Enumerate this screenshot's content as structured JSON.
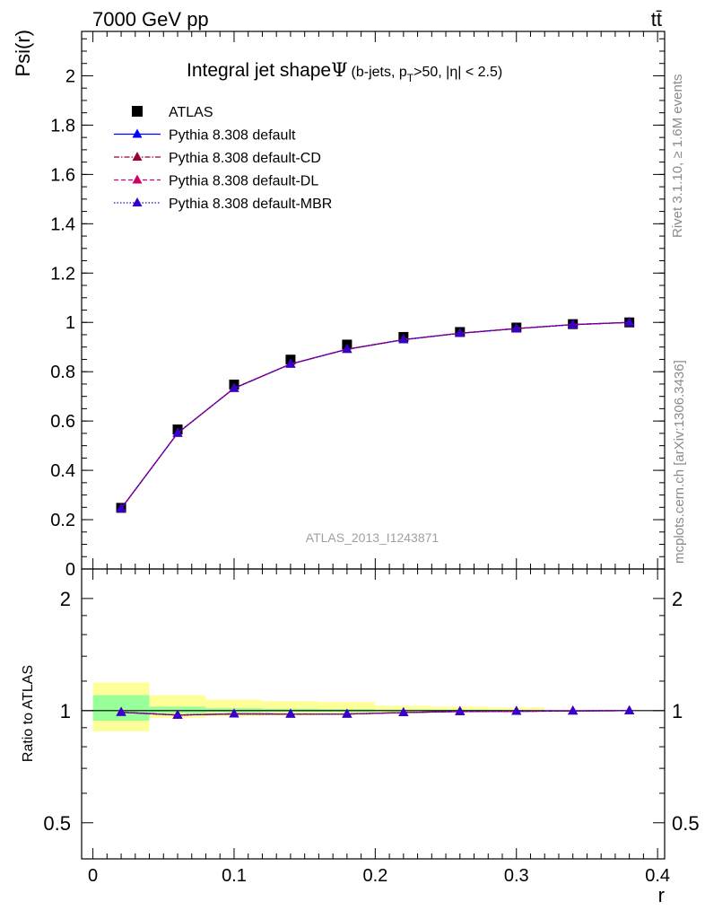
{
  "header": {
    "left": "7000 GeV pp",
    "right": "tt̄"
  },
  "side_text": {
    "rivet": "Rivet 3.1.10, ≥ 1.6M events",
    "mcplots": "mcplots.cern.ch [arXiv:1306.3436]"
  },
  "colors": {
    "atlas": "#000000",
    "default": "#0000ff",
    "cd": "#990033",
    "dl": "#cc0066",
    "mbr": "#3300cc",
    "band_inner": "#99ff99",
    "band_outer": "#ffff99"
  },
  "chart_data": [
    {
      "type": "line",
      "title": "Integral jet shape",
      "title_symbol": "Ψ",
      "subtitle_parts": [
        "(b-jets, p",
        "T",
        ">50, |η| < 2.5)"
      ],
      "ylabel": "Psi(r)",
      "xlabel": "",
      "watermark": "ATLAS_2013_I1243871",
      "xlim": [
        -0.008,
        0.405
      ],
      "ylim": [
        0,
        2.18
      ],
      "yticks": [
        0,
        0.2,
        0.4,
        0.6,
        0.8,
        1,
        1.2,
        1.4,
        1.6,
        1.8,
        2
      ],
      "ytick_labels": [
        "0",
        "0.2",
        "0.4",
        "0.6",
        "0.8",
        "1",
        "1.2",
        "1.4",
        "1.6",
        "1.8",
        "2"
      ],
      "legend_position": "top-left",
      "x": [
        0.02,
        0.06,
        0.1,
        0.14,
        0.18,
        0.22,
        0.26,
        0.3,
        0.34,
        0.38
      ],
      "series": [
        {
          "name": "ATLAS",
          "style": "marker",
          "color_key": "atlas",
          "values": [
            0.248,
            0.566,
            0.748,
            0.849,
            0.91,
            0.941,
            0.961,
            0.979,
            0.993,
            1.0
          ]
        },
        {
          "name": "Pythia 8.308 default",
          "style": "solid",
          "color_key": "default",
          "values": [
            0.245,
            0.551,
            0.733,
            0.831,
            0.891,
            0.93,
            0.956,
            0.975,
            0.991,
            1.0
          ]
        },
        {
          "name": "Pythia 8.308 default-CD",
          "style": "dashdot",
          "color_key": "cd",
          "values": [
            0.245,
            0.551,
            0.733,
            0.831,
            0.891,
            0.93,
            0.956,
            0.975,
            0.991,
            1.0
          ]
        },
        {
          "name": "Pythia 8.308 default-DL",
          "style": "dashed",
          "color_key": "dl",
          "values": [
            0.245,
            0.551,
            0.733,
            0.831,
            0.891,
            0.93,
            0.956,
            0.975,
            0.991,
            1.0
          ]
        },
        {
          "name": "Pythia 8.308 default-MBR",
          "style": "dotted",
          "color_key": "mbr",
          "values": [
            0.245,
            0.551,
            0.733,
            0.831,
            0.891,
            0.93,
            0.956,
            0.975,
            0.991,
            1.0
          ]
        }
      ]
    },
    {
      "type": "line",
      "title": "",
      "ylabel": "Ratio to ATLAS",
      "xlabel": "r",
      "xlim": [
        -0.008,
        0.405
      ],
      "ylim": [
        0.4,
        2.4
      ],
      "y_scale": "log",
      "yticks": [
        0.5,
        1,
        2
      ],
      "ytick_labels": [
        "0.5",
        "1",
        "2"
      ],
      "xticks": [
        0,
        0.1,
        0.2,
        0.3,
        0.4
      ],
      "xtick_labels": [
        "0",
        "0.1",
        "0.2",
        "0.3",
        "0.4"
      ],
      "bands": {
        "bin_edges": [
          0,
          0.04,
          0.08,
          0.12,
          0.16,
          0.2,
          0.24,
          0.28,
          0.32
        ],
        "inner_low": [
          0.94,
          0.985,
          0.99,
          0.992,
          0.992,
          0.995,
          0.996,
          0.997
        ],
        "inner_high": [
          1.1,
          1.025,
          1.015,
          1.012,
          1.01,
          1.007,
          1.006,
          1.005
        ],
        "outer_low": [
          0.88,
          0.955,
          0.965,
          0.97,
          0.975,
          0.985,
          0.988,
          0.99
        ],
        "outer_high": [
          1.19,
          1.1,
          1.07,
          1.06,
          1.055,
          1.03,
          1.025,
          1.02
        ]
      },
      "x": [
        0.02,
        0.06,
        0.1,
        0.14,
        0.18,
        0.22,
        0.26,
        0.3,
        0.34,
        0.38
      ],
      "series": [
        {
          "name": "Pythia 8.308 default",
          "style": "solid",
          "color_key": "default",
          "values": [
            0.99,
            0.973,
            0.98,
            0.979,
            0.979,
            0.988,
            0.995,
            0.996,
            0.998,
            1.0
          ]
        },
        {
          "name": "Pythia 8.308 default-CD",
          "style": "dashdot",
          "color_key": "cd",
          "values": [
            0.99,
            0.973,
            0.98,
            0.979,
            0.979,
            0.988,
            0.995,
            0.996,
            0.998,
            1.0
          ]
        },
        {
          "name": "Pythia 8.308 default-DL",
          "style": "dashed",
          "color_key": "dl",
          "values": [
            0.99,
            0.973,
            0.98,
            0.979,
            0.979,
            0.988,
            0.995,
            0.996,
            0.998,
            1.0
          ]
        },
        {
          "name": "Pythia 8.308 default-MBR",
          "style": "dotted",
          "color_key": "mbr",
          "values": [
            0.99,
            0.973,
            0.98,
            0.979,
            0.979,
            0.988,
            0.995,
            0.996,
            0.998,
            1.0
          ]
        }
      ]
    }
  ]
}
